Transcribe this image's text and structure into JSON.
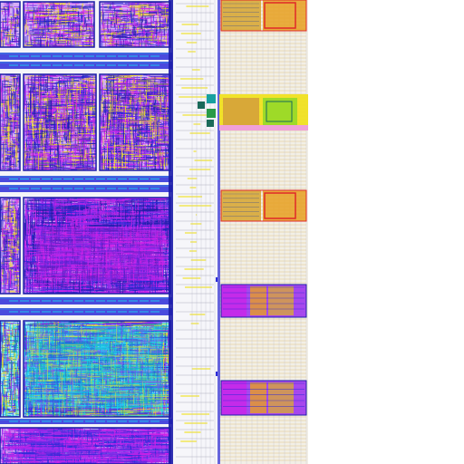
{
  "viewer": {
    "background": "#ffffff",
    "layout_background": "#f4f4f8"
  },
  "palette": {
    "metal_blue": "#2b2bd8",
    "poly_purple": "#9a2cf0",
    "magenta": "#d020e8",
    "cyan": "#1ad4f0",
    "navy": "#1c1ca8",
    "yellow": "#f0e020",
    "gold": "#d8a838",
    "orange": "#e8a020",
    "red": "#e02828",
    "green": "#2a9a48",
    "dark_green": "#1a6a5a",
    "teal": "#18a0a0",
    "lime": "#8ad828",
    "pink": "#f0a0d8",
    "gray": "#b8b8c8",
    "dark_gray": "#6a6a7a"
  },
  "regions": [
    {
      "kind": "logic-block",
      "name": "macro-row-1"
    },
    {
      "kind": "logic-block",
      "name": "macro-row-2"
    },
    {
      "kind": "logic-block",
      "name": "macro-row-3"
    },
    {
      "kind": "logic-block",
      "name": "macro-row-4"
    },
    {
      "kind": "routing-channel",
      "name": "vertical-bus"
    },
    {
      "kind": "standard-cell-column",
      "name": "io-column"
    }
  ]
}
